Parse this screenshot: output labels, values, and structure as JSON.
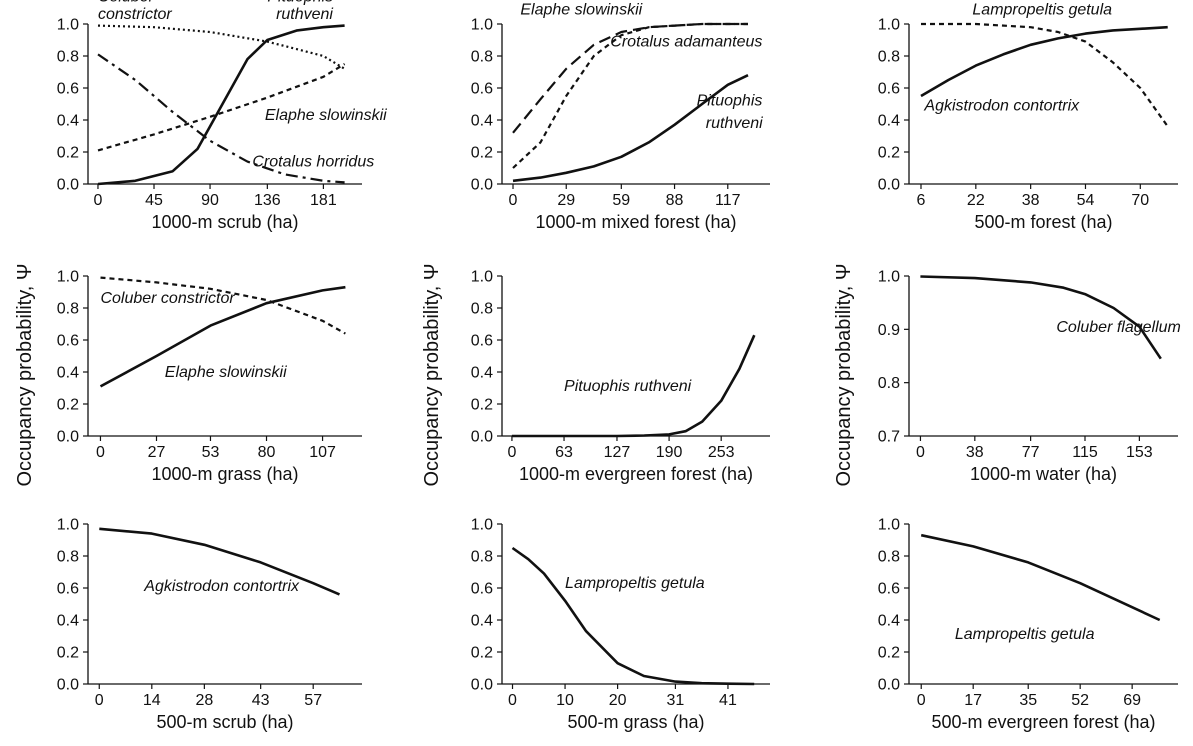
{
  "figure": {
    "ylabel_left": "Occupancy probability, Ψ",
    "ylabel_mid": "Occupancy probability, Ψ",
    "ylabel_right": "Occupancy probability, Ψ"
  },
  "chart_data": [
    {
      "type": "line",
      "xlabel": "1000-m scrub (ha)",
      "xticks": [
        "0",
        "45",
        "90",
        "136",
        "181"
      ],
      "xlim": [
        -8,
        212
      ],
      "ylim": [
        0,
        1
      ],
      "yticks": [
        "0.0",
        "0.2",
        "0.4",
        "0.6",
        "0.8",
        "1.0"
      ],
      "series": [
        {
          "name": "Coluber constrictor",
          "dash": "dotted",
          "x": [
            0,
            45,
            90,
            136,
            181,
            198
          ],
          "y": [
            0.99,
            0.98,
            0.95,
            0.89,
            0.8,
            0.72
          ]
        },
        {
          "name": "Pituophis ruthveni",
          "dash": "solid",
          "x": [
            0,
            30,
            60,
            80,
            100,
            120,
            136,
            160,
            181,
            198
          ],
          "y": [
            0.0,
            0.02,
            0.08,
            0.22,
            0.5,
            0.78,
            0.9,
            0.96,
            0.98,
            0.99
          ]
        },
        {
          "name": "Elaphe slowinskii",
          "dash": "dashed",
          "x": [
            0,
            45,
            90,
            136,
            181,
            198
          ],
          "y": [
            0.21,
            0.31,
            0.42,
            0.54,
            0.67,
            0.75
          ]
        },
        {
          "name": "Crotalus horridus",
          "dash": "dashdot",
          "x": [
            0,
            30,
            60,
            90,
            120,
            150,
            181,
            198
          ],
          "y": [
            0.81,
            0.65,
            0.45,
            0.27,
            0.14,
            0.06,
            0.02,
            0.01
          ]
        }
      ],
      "annotations": [
        {
          "text": "Coluber",
          "at": [
            0,
            1.14
          ]
        },
        {
          "text": "constrictor",
          "at": [
            0,
            1.03
          ]
        },
        {
          "text": "Pituophis",
          "at": [
            136,
            1.14
          ]
        },
        {
          "text": "ruthveni",
          "at": [
            143,
            1.03
          ]
        },
        {
          "text": "Elaphe slowinskii",
          "at": [
            134,
            0.4
          ]
        },
        {
          "text": "Crotalus horridus",
          "at": [
            124,
            0.11
          ]
        }
      ]
    },
    {
      "type": "line",
      "xlabel": "1000-m mixed forest (ha)",
      "xticks": [
        "0",
        "29",
        "59",
        "88",
        "117"
      ],
      "xlim": [
        -6,
        140
      ],
      "ylim": [
        0,
        1
      ],
      "yticks": [
        "0.0",
        "0.2",
        "0.4",
        "0.6",
        "0.8",
        "1.0"
      ],
      "series": [
        {
          "name": "Elaphe slowinskii",
          "dash": "longdash",
          "x": [
            0,
            15,
            29,
            44,
            59,
            74,
            88,
            103,
            117,
            128
          ],
          "y": [
            0.32,
            0.53,
            0.72,
            0.87,
            0.95,
            0.98,
            0.99,
            1.0,
            1.0,
            1.0
          ]
        },
        {
          "name": "Crotalus adamanteus",
          "dash": "dashed",
          "x": [
            0,
            15,
            29,
            44,
            59,
            74,
            88,
            103,
            117,
            128
          ],
          "y": [
            0.1,
            0.26,
            0.55,
            0.8,
            0.93,
            0.98,
            0.99,
            1.0,
            1.0,
            1.0
          ]
        },
        {
          "name": "Pituophis ruthveni",
          "dash": "solid",
          "x": [
            0,
            15,
            29,
            44,
            59,
            74,
            88,
            103,
            117,
            128
          ],
          "y": [
            0.02,
            0.04,
            0.07,
            0.11,
            0.17,
            0.26,
            0.37,
            0.5,
            0.62,
            0.68
          ]
        }
      ],
      "annotations": [
        {
          "text": "Elaphe slowinskii",
          "at": [
            4,
            1.06
          ]
        },
        {
          "text": "Crotalus adamanteus",
          "at": [
            53,
            0.86
          ]
        },
        {
          "text": "Pituophis",
          "at": [
            100,
            0.49
          ]
        },
        {
          "text": "ruthveni",
          "at": [
            105,
            0.35
          ]
        }
      ]
    },
    {
      "type": "line",
      "xlabel": "500-m forest (ha)",
      "xticks": [
        "6",
        "22",
        "38",
        "54",
        "70"
      ],
      "xlim": [
        2.5,
        81
      ],
      "ylim": [
        0,
        1
      ],
      "yticks": [
        "0.0",
        "0.2",
        "0.4",
        "0.6",
        "0.8",
        "1.0"
      ],
      "series": [
        {
          "name": "Lampropeltis getula",
          "dash": "dashed",
          "x": [
            6,
            22,
            38,
            46,
            54,
            62,
            70,
            78
          ],
          "y": [
            1.0,
            1.0,
            0.98,
            0.95,
            0.89,
            0.76,
            0.6,
            0.36
          ]
        },
        {
          "name": "Agkistrodon contortrix",
          "dash": "solid",
          "x": [
            6,
            14,
            22,
            30,
            38,
            46,
            54,
            62,
            70,
            78
          ],
          "y": [
            0.55,
            0.65,
            0.74,
            0.81,
            0.87,
            0.91,
            0.94,
            0.96,
            0.97,
            0.98
          ]
        }
      ],
      "annotations": [
        {
          "text": "Lampropeltis getula",
          "at": [
            21,
            1.06
          ]
        },
        {
          "text": "Agkistrodon contortrix",
          "at": [
            7,
            0.46
          ]
        }
      ]
    },
    {
      "type": "line",
      "xlabel": "1000-m grass (ha)",
      "xticks": [
        "0",
        "27",
        "53",
        "80",
        "107"
      ],
      "xlim": [
        -6,
        126
      ],
      "ylim": [
        0,
        1
      ],
      "yticks": [
        "0.0",
        "0.2",
        "0.4",
        "0.6",
        "0.8",
        "1.0"
      ],
      "series": [
        {
          "name": "Coluber constrictor",
          "dash": "dashed",
          "x": [
            0,
            27,
            53,
            80,
            107,
            118
          ],
          "y": [
            0.99,
            0.96,
            0.92,
            0.85,
            0.72,
            0.64
          ]
        },
        {
          "name": "Elaphe slowinskii",
          "dash": "solid",
          "x": [
            0,
            27,
            53,
            80,
            107,
            118
          ],
          "y": [
            0.31,
            0.5,
            0.69,
            0.83,
            0.91,
            0.93
          ]
        }
      ],
      "annotations": [
        {
          "text": "Coluber constrictor",
          "at": [
            0,
            0.83
          ]
        },
        {
          "text": "Elaphe slowinskii",
          "at": [
            31,
            0.37
          ]
        }
      ]
    },
    {
      "type": "line",
      "xlabel": "1000-m evergreen forest (ha)",
      "xticks": [
        "0",
        "63",
        "127",
        "190",
        "253"
      ],
      "xlim": [
        -12,
        312
      ],
      "ylim": [
        0,
        1
      ],
      "yticks": [
        "0.0",
        "0.2",
        "0.4",
        "0.6",
        "0.8",
        "1.0"
      ],
      "series": [
        {
          "name": "Pituophis ruthveni",
          "dash": "solid",
          "x": [
            0,
            63,
            127,
            160,
            190,
            210,
            230,
            253,
            275,
            293
          ],
          "y": [
            0.0,
            0.0,
            0.0,
            0.003,
            0.01,
            0.03,
            0.09,
            0.22,
            0.42,
            0.63
          ]
        }
      ],
      "annotations": [
        {
          "text": "Pituophis ruthveni",
          "at": [
            63,
            0.28
          ]
        }
      ]
    },
    {
      "type": "line",
      "xlabel": "1000-m water (ha)",
      "xticks": [
        "0",
        "38",
        "77",
        "115",
        "153"
      ],
      "xlim": [
        -8,
        180
      ],
      "ylim": [
        0.7,
        1.0
      ],
      "yticks": [
        "0.7",
        "0.8",
        "0.9",
        "1.0"
      ],
      "series": [
        {
          "name": "Coluber flagellum",
          "dash": "solid",
          "x": [
            0,
            38,
            77,
            100,
            115,
            135,
            153,
            168
          ],
          "y": [
            0.999,
            0.996,
            0.988,
            0.978,
            0.966,
            0.94,
            0.905,
            0.845
          ]
        }
      ],
      "annotations": [
        {
          "text": "Coluber flagellum",
          "at": [
            95,
            0.895
          ]
        }
      ]
    },
    {
      "type": "line",
      "xlabel": "500-m scrub (ha)",
      "xticks": [
        "0",
        "14",
        "28",
        "43",
        "57"
      ],
      "xlim": [
        -3,
        70
      ],
      "ylim": [
        0,
        1
      ],
      "yticks": [
        "0.0",
        "0.2",
        "0.4",
        "0.6",
        "0.8",
        "1.0"
      ],
      "series": [
        {
          "name": "Agkistrodon contortrix",
          "dash": "solid",
          "x": [
            0,
            14,
            28,
            43,
            57,
            64
          ],
          "y": [
            0.97,
            0.94,
            0.87,
            0.76,
            0.63,
            0.56
          ]
        }
      ],
      "annotations": [
        {
          "text": "Agkistrodon contortrix",
          "at": [
            12,
            0.58
          ]
        }
      ]
    },
    {
      "type": "line",
      "xlabel": "500-m grass (ha)",
      "xticks": [
        "0",
        "10",
        "20",
        "31",
        "41"
      ],
      "xlim": [
        -2,
        49
      ],
      "ylim": [
        0,
        1
      ],
      "yticks": [
        "0.0",
        "0.2",
        "0.4",
        "0.6",
        "0.8",
        "1.0"
      ],
      "series": [
        {
          "name": "Lampropeltis getula",
          "dash": "solid",
          "x": [
            0,
            3,
            6,
            10,
            14,
            20,
            25,
            31,
            36,
            41,
            46
          ],
          "y": [
            0.85,
            0.78,
            0.69,
            0.52,
            0.33,
            0.13,
            0.05,
            0.015,
            0.005,
            0.002,
            0.0
          ]
        }
      ],
      "annotations": [
        {
          "text": "Lampropeltis getula",
          "at": [
            10,
            0.6
          ]
        }
      ]
    },
    {
      "type": "line",
      "xlabel": "500-m evergreen forest (ha)",
      "xticks": [
        "0",
        "17",
        "35",
        "52",
        "69"
      ],
      "xlim": [
        -4,
        84
      ],
      "ylim": [
        0,
        1
      ],
      "yticks": [
        "0.0",
        "0.2",
        "0.4",
        "0.6",
        "0.8",
        "1.0"
      ],
      "series": [
        {
          "name": "Lampropeltis getula",
          "dash": "solid",
          "x": [
            0,
            17,
            35,
            52,
            69,
            78
          ],
          "y": [
            0.93,
            0.86,
            0.76,
            0.63,
            0.48,
            0.4
          ]
        }
      ],
      "annotations": [
        {
          "text": "Lampropeltis getula",
          "at": [
            11,
            0.28
          ]
        }
      ]
    }
  ]
}
